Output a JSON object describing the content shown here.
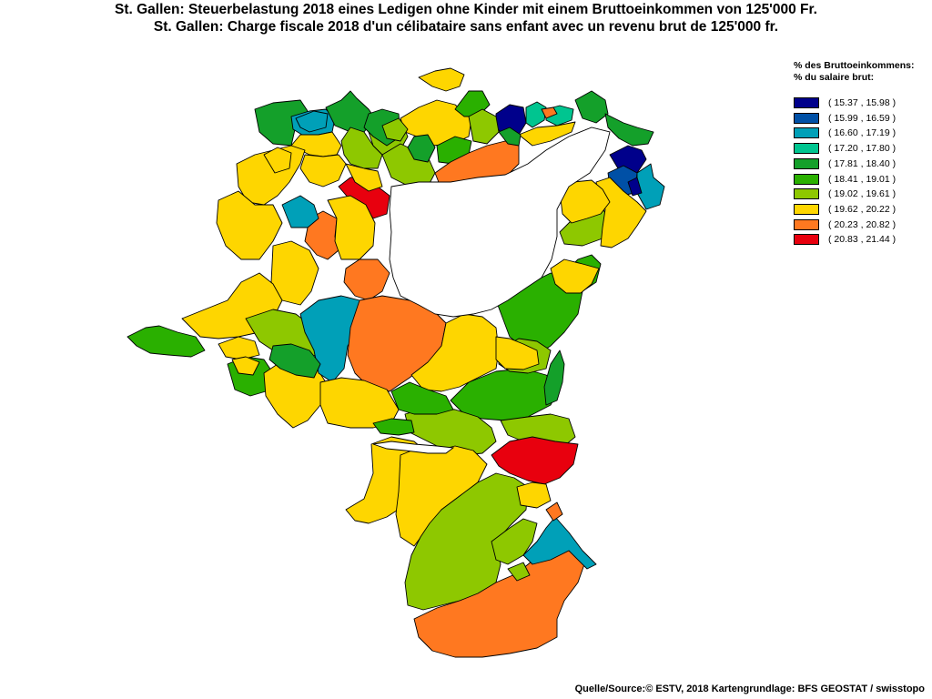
{
  "title": {
    "line1": "St. Gallen: Steuerbelastung 2018 eines Ledigen ohne Kinder mit einem Bruttoeinkommen von 125'000 Fr.",
    "line2": "St. Gallen: Charge fiscale 2018 d'un célibataire sans enfant avec un revenu brut de 125'000 fr."
  },
  "legend": {
    "header1": "% des Bruttoeinkommens:",
    "header2": "% du salaire brut:",
    "classes": [
      {
        "label": "( 15.37 , 15.98 )",
        "color": "#00008b"
      },
      {
        "label": "( 15.99 , 16.59 )",
        "color": "#0050a6"
      },
      {
        "label": "( 16.60 , 17.19 )",
        "color": "#00a0b8"
      },
      {
        "label": "( 17.20 , 17.80 )",
        "color": "#00c590"
      },
      {
        "label": "( 17.81 , 18.40 )",
        "color": "#14a02a"
      },
      {
        "label": "( 18.41 , 19.01 )",
        "color": "#2ab000"
      },
      {
        "label": "( 19.02 , 19.61 )",
        "color": "#8ec800"
      },
      {
        "label": "( 19.62 , 20.22 )",
        "color": "#fed600"
      },
      {
        "label": "( 20.23 , 20.82 )",
        "color": "#ff7820"
      },
      {
        "label": "( 20.83 , 21.44 )",
        "color": "#e8000e"
      }
    ]
  },
  "source": "Quelle/Source:© ESTV, 2018 Kartengrundlage: BFS GEOSTAT / swisstopo",
  "map": {
    "lake_color": "#ffffff",
    "municipalities": [
      {
        "name": "municipality-1",
        "class": 4
      },
      {
        "name": "municipality-2",
        "class": 2
      },
      {
        "name": "municipality-3",
        "class": 4
      },
      {
        "name": "municipality-4",
        "class": 7
      },
      {
        "name": "municipality-5",
        "class": 6
      },
      {
        "name": "municipality-6",
        "class": 6
      },
      {
        "name": "municipality-7",
        "class": 6
      },
      {
        "name": "municipality-8",
        "class": 4
      },
      {
        "name": "municipality-9",
        "class": 7
      },
      {
        "name": "municipality-10",
        "class": 4
      },
      {
        "name": "municipality-11",
        "class": 0
      },
      {
        "name": "municipality-12",
        "class": 3
      },
      {
        "name": "municipality-13",
        "class": 3
      },
      {
        "name": "municipality-14",
        "class": 8
      },
      {
        "name": "municipality-15",
        "class": 4
      },
      {
        "name": "municipality-16",
        "class": 4
      },
      {
        "name": "municipality-17",
        "class": 7
      },
      {
        "name": "municipality-18",
        "class": 2
      },
      {
        "name": "municipality-19",
        "class": 5
      },
      {
        "name": "municipality-20",
        "class": 6
      },
      {
        "name": "municipality-21",
        "class": 5
      },
      {
        "name": "municipality-22",
        "class": 7
      },
      {
        "name": "municipality-23",
        "class": 8
      },
      {
        "name": "municipality-24",
        "class": 4
      },
      {
        "name": "municipality-25",
        "class": 9
      },
      {
        "name": "municipality-26",
        "class": 7
      },
      {
        "name": "municipality-27",
        "class": 7
      },
      {
        "name": "municipality-28",
        "class": 7
      },
      {
        "name": "municipality-29",
        "class": 7
      },
      {
        "name": "municipality-30",
        "class": 8
      },
      {
        "name": "municipality-31",
        "class": 7
      },
      {
        "name": "municipality-32",
        "class": 8
      },
      {
        "name": "municipality-33",
        "class": 7
      },
      {
        "name": "municipality-34",
        "class": 2
      },
      {
        "name": "municipality-35",
        "class": 0
      },
      {
        "name": "municipality-36",
        "class": 1
      },
      {
        "name": "municipality-37",
        "class": 2
      },
      {
        "name": "municipality-38",
        "class": 0
      },
      {
        "name": "municipality-39",
        "class": 5
      },
      {
        "name": "municipality-40",
        "class": 7
      },
      {
        "name": "municipality-41",
        "class": 5
      },
      {
        "name": "municipality-42",
        "class": 6
      },
      {
        "name": "municipality-43",
        "class": 7
      },
      {
        "name": "municipality-44",
        "class": 7
      },
      {
        "name": "municipality-45",
        "class": 2
      },
      {
        "name": "municipality-46",
        "class": 5
      },
      {
        "name": "municipality-47",
        "class": 4
      },
      {
        "name": "municipality-48",
        "class": 5
      },
      {
        "name": "municipality-49",
        "class": 6
      },
      {
        "name": "municipality-50",
        "class": 6
      },
      {
        "name": "municipality-51",
        "class": 7
      },
      {
        "name": "municipality-52",
        "class": 8
      },
      {
        "name": "municipality-53",
        "class": 7
      },
      {
        "name": "municipality-54",
        "class": 7
      },
      {
        "name": "municipality-55",
        "class": 5
      },
      {
        "name": "municipality-56",
        "class": 7
      },
      {
        "name": "municipality-57",
        "class": 6
      },
      {
        "name": "municipality-58",
        "class": 5
      },
      {
        "name": "municipality-59",
        "class": 4
      },
      {
        "name": "municipality-60",
        "class": 5
      },
      {
        "name": "municipality-61",
        "class": 9
      },
      {
        "name": "municipality-62",
        "class": 6
      },
      {
        "name": "municipality-63",
        "class": 8
      },
      {
        "name": "municipality-64",
        "class": 6
      },
      {
        "name": "municipality-65",
        "class": 7
      },
      {
        "name": "municipality-66",
        "class": 2
      },
      {
        "name": "municipality-67",
        "class": 6
      },
      {
        "name": "municipality-68",
        "class": 8
      },
      {
        "name": "municipality-69",
        "class": 7
      },
      {
        "name": "municipality-70",
        "class": 6
      },
      {
        "name": "municipality-71",
        "class": 6
      },
      {
        "name": "municipality-72",
        "class": 7
      },
      {
        "name": "municipality-73",
        "class": 7
      },
      {
        "name": "municipality-74",
        "class": 7
      },
      {
        "name": "municipality-75",
        "class": 7
      },
      {
        "name": "municipality-76",
        "class": 7
      }
    ]
  }
}
